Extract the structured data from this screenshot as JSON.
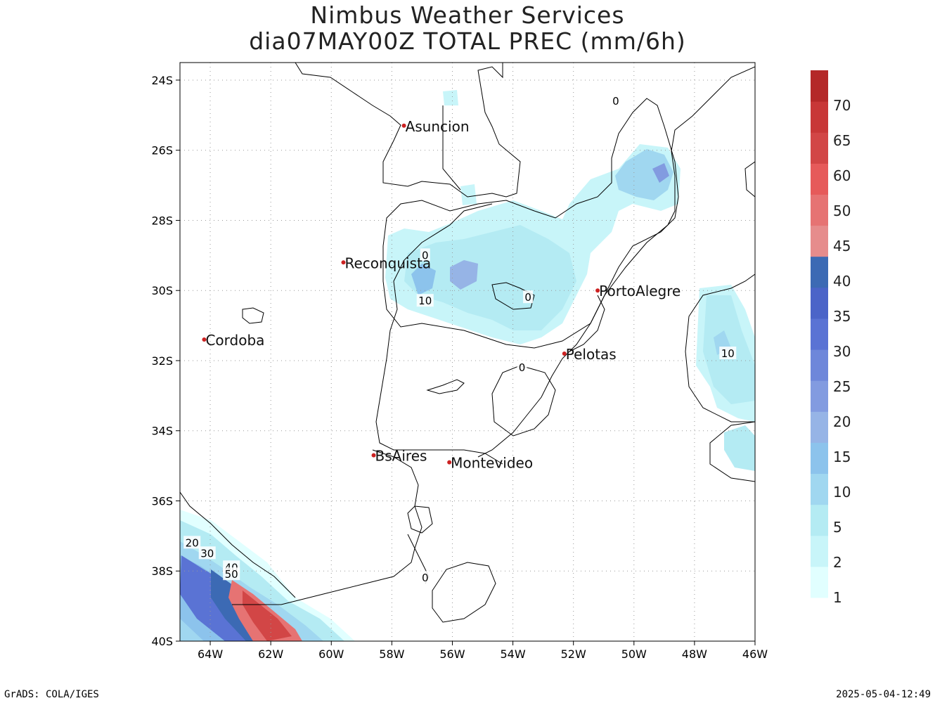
{
  "header": {
    "title_line1": "Nimbus Weather Services",
    "title_line2": "dia07MAY00Z TOTAL PREC (mm/6h)"
  },
  "map": {
    "lat_labels": [
      "24S",
      "26S",
      "28S",
      "30S",
      "32S",
      "34S",
      "36S",
      "38S",
      "40S"
    ],
    "lon_labels": [
      "64W",
      "62W",
      "60W",
      "58W",
      "56W",
      "54W",
      "52W",
      "50W",
      "48W",
      "46W"
    ],
    "lat_range": [
      -40,
      -23.5
    ],
    "lon_range": [
      -65,
      -46
    ],
    "cities": [
      {
        "name": "Asuncion",
        "lon": -57.6,
        "lat": -25.3
      },
      {
        "name": "Reconquista",
        "lon": -59.6,
        "lat": -29.2
      },
      {
        "name": "Cordoba",
        "lon": -64.2,
        "lat": -31.4
      },
      {
        "name": "PortoAlegre",
        "lon": -51.2,
        "lat": -30.0
      },
      {
        "name": "Pelotas",
        "lon": -52.3,
        "lat": -31.8
      },
      {
        "name": "BsAires",
        "lon": -58.6,
        "lat": -34.7
      },
      {
        "name": "Montevideo",
        "lon": -56.1,
        "lat": -34.9
      }
    ],
    "contour_labels": [
      {
        "text": "0",
        "lon": -50.6,
        "lat": -24.6
      },
      {
        "text": "0",
        "lon": -56.9,
        "lat": -29.0
      },
      {
        "text": "10",
        "lon": -56.9,
        "lat": -30.3
      },
      {
        "text": "0",
        "lon": -53.5,
        "lat": -30.2
      },
      {
        "text": "10",
        "lon": -46.9,
        "lat": -31.8
      },
      {
        "text": "0",
        "lon": -53.7,
        "lat": -32.2
      },
      {
        "text": "0",
        "lon": -56.9,
        "lat": -38.2
      },
      {
        "text": "20",
        "lon": -64.6,
        "lat": -37.2
      },
      {
        "text": "30",
        "lon": -64.1,
        "lat": -37.5
      },
      {
        "text": "40",
        "lon": -63.3,
        "lat": -37.9
      },
      {
        "text": "50",
        "lon": -63.3,
        "lat": -38.1
      }
    ],
    "colors": {
      "city_dot": "#cc2222",
      "grid": "#999999",
      "land": "#ffffff"
    }
  },
  "colorbar": {
    "labels": [
      "1",
      "2",
      "5",
      "10",
      "15",
      "20",
      "25",
      "30",
      "35",
      "40",
      "45",
      "50",
      "60",
      "65",
      "70"
    ],
    "colors": [
      "#e1ffff",
      "#c8f5f9",
      "#b4ebf3",
      "#a0d7f0",
      "#8cc3ec",
      "#96b4e6",
      "#829be0",
      "#6e87da",
      "#5a73d4",
      "#4b64c8",
      "#3c6ab4",
      "#e68c8c",
      "#e67373",
      "#e65a5a",
      "#d24646",
      "#c83737",
      "#b42828"
    ]
  },
  "footer": {
    "left": "GrADS: COLA/IGES",
    "right": "2025-05-04-12:49"
  }
}
